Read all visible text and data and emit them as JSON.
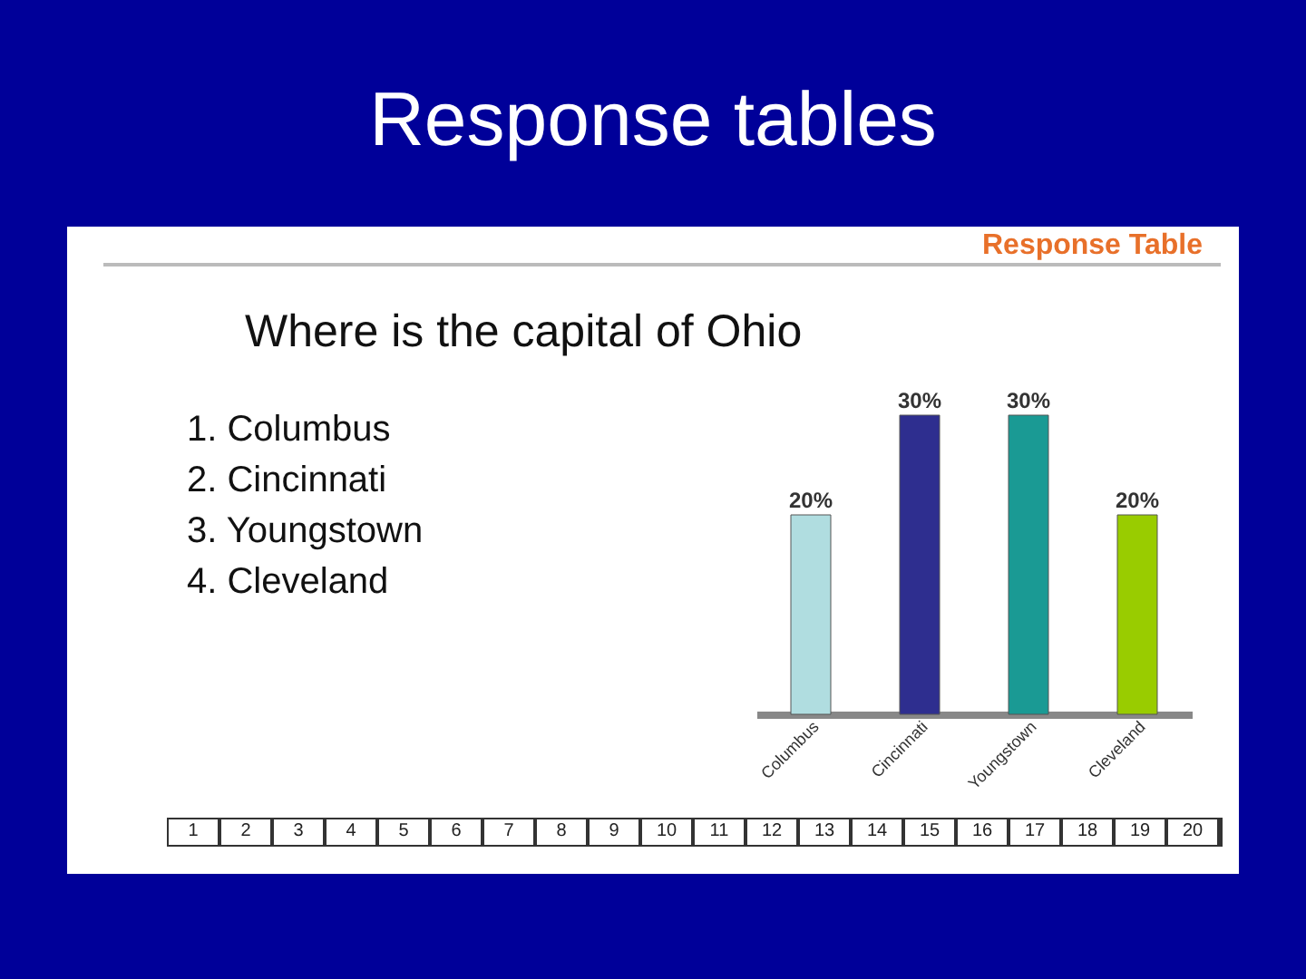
{
  "chart_data": {
    "type": "bar",
    "title": "Where is the capital of Ohio",
    "subtitle": "Response Table",
    "categories": [
      "Columbus",
      "Cincinnati",
      "Youngstown",
      "Cleveland"
    ],
    "values": [
      20,
      30,
      30,
      20
    ],
    "colors": [
      "#b0dde0",
      "#2e2e8f",
      "#1a9a94",
      "#99cc00"
    ],
    "value_labels": [
      "20%",
      "30%",
      "30%",
      "20%"
    ],
    "annotations": [
      "Response tables",
      "1. Columbus",
      "2. Cincinnati",
      "3. Youngstown",
      "4. Cleveland",
      "1 2 3 4 5 6 7 8 9 10 11 12 13 14 15 16 17 18 19 20"
    ]
  }
}
